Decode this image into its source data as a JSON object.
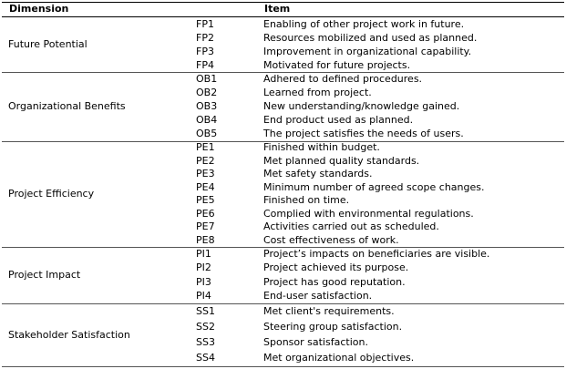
{
  "table": {
    "header": {
      "dimension": "Dimension",
      "item": "Item"
    },
    "groups": [
      {
        "dimension": "Future Potential",
        "rows": [
          [
            "FP1",
            "Enabling of other project work in future."
          ],
          [
            "FP2",
            "Resources mobilized and used as planned."
          ],
          [
            "FP3",
            "Improvement in organizational capability."
          ],
          [
            "FP4",
            "Motivated for future projects."
          ]
        ]
      },
      {
        "dimension": "Organizational Benefits",
        "rows": [
          [
            "OB1",
            "Adhered to defined procedures."
          ],
          [
            "OB2",
            "Learned from project."
          ],
          [
            "OB3",
            "New understanding/knowledge gained."
          ],
          [
            "OB4",
            "End product used as planned."
          ],
          [
            "OB5",
            "The project satisfies the needs of users."
          ]
        ]
      },
      {
        "dimension": "Project Efficiency",
        "rows": [
          [
            "PE1",
            "Finished within budget."
          ],
          [
            "PE2",
            "Met planned quality standards."
          ],
          [
            "PE3",
            "Met safety standards."
          ],
          [
            "PE4",
            "Minimum number of agreed scope changes."
          ],
          [
            "PE5",
            "Finished on time."
          ],
          [
            "PE6",
            "Complied with environmental regulations."
          ],
          [
            "PE7",
            "Activities carried out as scheduled."
          ],
          [
            "PE8",
            "Cost effectiveness of work."
          ]
        ]
      },
      {
        "dimension": "Project Impact",
        "rows": [
          [
            "PI1",
            "Project’s impacts on beneficiaries are visible."
          ],
          [
            "PI2",
            "Project achieved its purpose."
          ],
          [
            "PI3",
            "Project has good reputation."
          ],
          [
            "PI4",
            "End-user satisfaction."
          ]
        ]
      },
      {
        "dimension": "Stakeholder Satisfaction",
        "rows": [
          [
            "SS1",
            "Met client's requirements."
          ],
          [
            "SS2",
            "Steering group satisfaction."
          ],
          [
            "SS3",
            "Sponsor satisfaction."
          ],
          [
            "SS4",
            "Met organizational objectives."
          ]
        ]
      }
    ]
  }
}
